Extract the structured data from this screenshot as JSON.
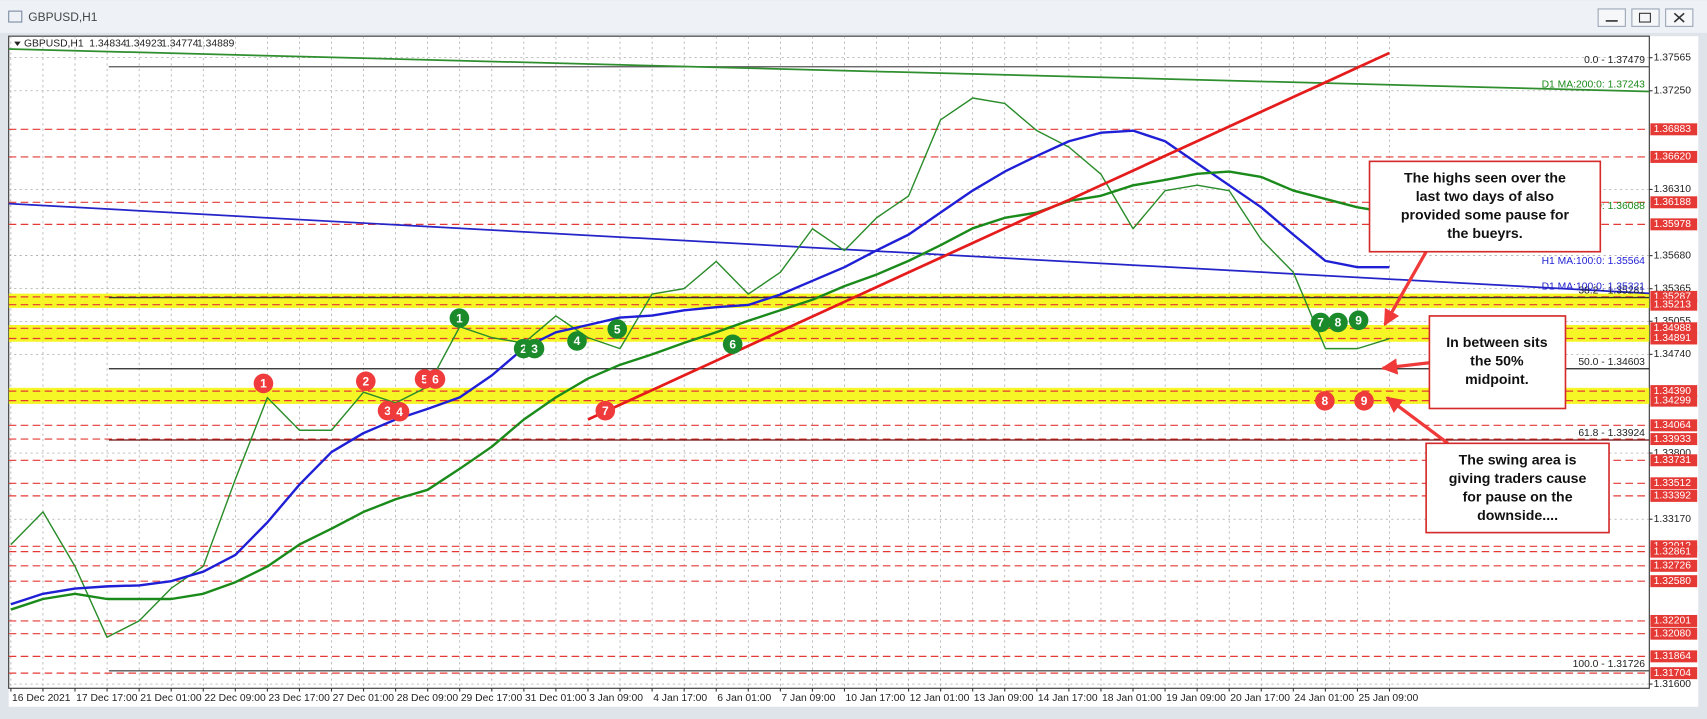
{
  "window_title": "GBPUSD,H1",
  "chart_data": {
    "type": "line",
    "symbol": "GBPUSD,H1",
    "ohlc": [
      "1.34834",
      "1.34923",
      "1.34774",
      "1.34889"
    ],
    "categories": [
      "16 Dec 2021",
      null,
      "17 Dec 17:00",
      null,
      "21 Dec 01:00",
      null,
      "22 Dec 09:00",
      null,
      "23 Dec 17:00",
      null,
      "27 Dec 01:00",
      null,
      "28 Dec 09:00",
      null,
      "29 Dec 17:00",
      null,
      "31 Dec 01:00",
      null,
      "3 Jan 09:00",
      null,
      "4 Jan 17:00",
      null,
      "6 Jan 01:00",
      null,
      "7 Jan 09:00",
      null,
      "10 Jan 17:00",
      null,
      "12 Jan 01:00",
      null,
      "13 Jan 09:00",
      null,
      "14 Jan 17:00",
      null,
      "18 Jan 01:00",
      null,
      "19 Jan 09:00",
      null,
      "20 Jan 17:00",
      null,
      "24 Jan 01:00",
      null,
      "25 Jan 09:00",
      null
    ],
    "ylim": [
      1.3156,
      1.3777
    ],
    "yticks": [
      {
        "value": 1.37565,
        "label": "1.37565"
      },
      {
        "value": 1.3725,
        "label": "1.37250"
      },
      {
        "value": 1.3631,
        "label": "1.36310"
      },
      {
        "value": 1.3568,
        "label": "1.35680"
      },
      {
        "value": 1.35365,
        "label": "1.35365"
      },
      {
        "value": 1.35055,
        "label": "1.35055"
      },
      {
        "value": 1.3474,
        "label": "1.34740"
      },
      {
        "value": 1.338,
        "label": "1.33800"
      },
      {
        "value": 1.3317,
        "label": "1.33170"
      },
      {
        "value": 1.316,
        "label": "1.31600"
      }
    ],
    "grid": true,
    "series": [
      {
        "color": "#2a8c2a",
        "width": 1.3,
        "values": [
          1.32928,
          1.33239,
          1.32721,
          1.32046,
          1.32202,
          1.32513,
          1.32721,
          1.3355,
          1.34328,
          1.34017,
          1.34017,
          1.3438,
          1.34277,
          1.34432,
          1.35003,
          1.34899,
          1.34847,
          1.35106,
          1.34899,
          1.34795,
          1.35314,
          1.35366,
          1.35625,
          1.35314,
          1.35521,
          1.35936,
          1.35729,
          1.3604,
          1.36248,
          1.36974,
          1.37181,
          1.37129,
          1.3687,
          1.36714,
          1.36455,
          1.35936,
          1.36299,
          1.36351,
          1.36299,
          1.35833,
          1.35521,
          1.34795,
          1.34795,
          1.34889
        ]
      },
      {
        "color": "#1f1fd6",
        "width": 2.2,
        "values": [
          1.3236,
          1.3246,
          1.3251,
          1.3253,
          1.3254,
          1.3258,
          1.3267,
          1.3283,
          1.3314,
          1.335,
          1.3381,
          1.3399,
          1.3412,
          1.3422,
          1.3433,
          1.3454,
          1.348,
          1.3495,
          1.3502,
          1.3509,
          1.3511,
          1.3516,
          1.3519,
          1.3521,
          1.3531,
          1.3544,
          1.3557,
          1.3573,
          1.3588,
          1.3609,
          1.363,
          1.3648,
          1.3663,
          1.3677,
          1.3685,
          1.3687,
          1.3677,
          1.3656,
          1.3635,
          1.3614,
          1.3588,
          1.3563,
          1.3557,
          1.3557
        ]
      },
      {
        "color": "#1a8a1a",
        "width": 2.2,
        "values": [
          1.3231,
          1.3241,
          1.3246,
          1.3241,
          1.3241,
          1.3241,
          1.3246,
          1.3257,
          1.3272,
          1.3293,
          1.3308,
          1.3324,
          1.3336,
          1.3345,
          1.3365,
          1.3386,
          1.3412,
          1.3433,
          1.3451,
          1.3464,
          1.3474,
          1.3485,
          1.3495,
          1.3506,
          1.3516,
          1.3526,
          1.3539,
          1.355,
          1.3563,
          1.3578,
          1.3594,
          1.3604,
          1.3609,
          1.362,
          1.3625,
          1.3635,
          1.364,
          1.3646,
          1.3648,
          1.3643,
          1.363,
          1.3622,
          1.3614,
          1.3609
        ]
      },
      {
        "color": "#e51c1c",
        "width": 2.5,
        "values": [
          null,
          null,
          null,
          null,
          null,
          null,
          null,
          null,
          null,
          null,
          null,
          null,
          null,
          null,
          null,
          null,
          null,
          null,
          1.3412,
          1.3426,
          1.344,
          1.3454,
          1.3468,
          1.3482,
          1.3496,
          1.351,
          1.3524,
          1.3538,
          1.3552,
          1.3566,
          1.358,
          1.3594,
          1.3608,
          1.3621,
          1.3635,
          1.3649,
          1.3663,
          1.3677,
          1.3691,
          1.3705,
          1.3719,
          1.3733,
          1.3747,
          1.3761
        ]
      }
    ],
    "guides": [
      {
        "color": "#2f8f2f",
        "ends": [
          1.37648,
          1.37243
        ]
      },
      {
        "color": "#2424c8",
        "ends": [
          1.36175,
          1.35321
        ]
      }
    ],
    "zones": [
      [
        1.35213,
        1.35287
      ],
      [
        1.34891,
        1.34988
      ],
      [
        1.34299,
        1.3439
      ]
    ],
    "levels": [
      {
        "value": 1.36883,
        "label": "1.36883"
      },
      {
        "value": 1.3662,
        "label": "1.36620"
      },
      {
        "value": 1.36188,
        "label": "1.36188"
      },
      {
        "value": 1.35978,
        "label": "1.35978"
      },
      {
        "value": 1.35287,
        "label": "1.35287"
      },
      {
        "value": 1.35213,
        "label": "1.35213"
      },
      {
        "value": 1.34988,
        "label": "1.34988"
      },
      {
        "value": 1.34891,
        "label": "1.34891"
      },
      {
        "value": 1.3439,
        "label": "1.34390"
      },
      {
        "value": 1.34299,
        "label": "1.34299"
      },
      {
        "value": 1.34064,
        "label": "1.34064"
      },
      {
        "value": 1.33933,
        "label": "1.33933"
      },
      {
        "value": 1.33731,
        "label": "1.33731"
      },
      {
        "value": 1.33512,
        "label": "1.33512"
      },
      {
        "value": 1.33392,
        "label": "1.33392"
      },
      {
        "value": 1.32912,
        "label": "1.32912"
      },
      {
        "value": 1.32861,
        "label": "1.32861"
      },
      {
        "value": 1.32726,
        "label": "1.32726"
      },
      {
        "value": 1.3258,
        "label": "1.32580"
      },
      {
        "value": 1.32201,
        "label": "1.32201"
      },
      {
        "value": 1.3208,
        "label": "1.32080"
      },
      {
        "value": 1.31864,
        "label": "1.31864"
      },
      {
        "value": 1.31704,
        "label": "1.31704"
      }
    ],
    "fib": [
      {
        "value": 1.37479,
        "label": "0.0 - 1.37479",
        "color": "#555555"
      },
      {
        "value": 1.35281,
        "label": "38.2 - 1.35281",
        "color": "#333333"
      },
      {
        "value": 1.34603,
        "label": "50.0 - 1.34603",
        "color": "#222222"
      },
      {
        "value": 1.33924,
        "label": "61.8 - 1.33924",
        "color": "#6b0f0f"
      },
      {
        "value": 1.31726,
        "label": "100.0 - 1.31726",
        "color": "#555555"
      }
    ],
    "ma_labels": [
      {
        "text": "D1 MA:200:0: 1.37243",
        "value": 1.37243,
        "color": "#1a8a1a"
      },
      {
        "text": "0: 1.36088",
        "value": 1.36088,
        "color": "#1a8a1a"
      },
      {
        "text": "H1 MA:100:0: 1.35564",
        "value": 1.35564,
        "color": "#1f1fd6"
      },
      {
        "text": "D1 MA:100:0: 1.35321",
        "value": 1.35321,
        "color": "#2424c8"
      }
    ]
  },
  "markers": {
    "green": [
      "1",
      "2",
      "3",
      "4",
      "5",
      "6",
      "7",
      "8",
      "9"
    ],
    "red": [
      "1",
      "2",
      "3",
      "4",
      "5",
      "6",
      "7",
      "8",
      "9"
    ]
  },
  "callouts": [
    [
      "The highs seen over the",
      "last two days of also",
      "provided some pause for",
      "the bueyrs."
    ],
    [
      "In between sits",
      "the 50%",
      "midpoint."
    ],
    [
      "The swing area is",
      "giving traders cause",
      "for pause on the",
      "downside...."
    ]
  ]
}
